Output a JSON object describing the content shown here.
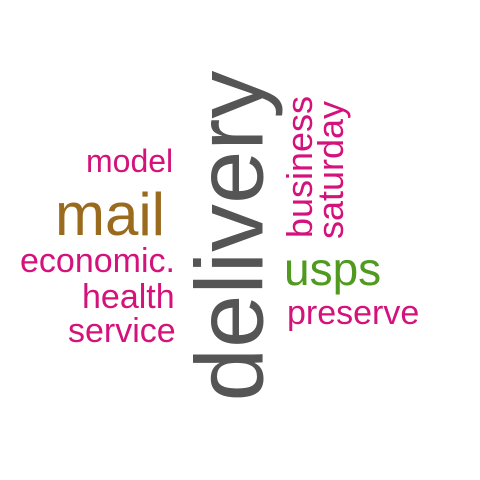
{
  "words": {
    "delivery": {
      "text": "delivery",
      "color": "#555555"
    },
    "mail": {
      "text": "mail",
      "color": "#9a6a1e"
    },
    "model": {
      "text": "model",
      "color": "#d4127c"
    },
    "economic": {
      "text": "economic.",
      "color": "#d4127c"
    },
    "health": {
      "text": "health",
      "color": "#d4127c"
    },
    "service": {
      "text": "service",
      "color": "#d4127c"
    },
    "usps": {
      "text": "usps",
      "color": "#4f9a1f"
    },
    "preserve": {
      "text": "preserve",
      "color": "#d4127c"
    },
    "business": {
      "text": "business",
      "color": "#d4127c"
    },
    "saturday": {
      "text": "saturday",
      "color": "#d4127c"
    }
  }
}
